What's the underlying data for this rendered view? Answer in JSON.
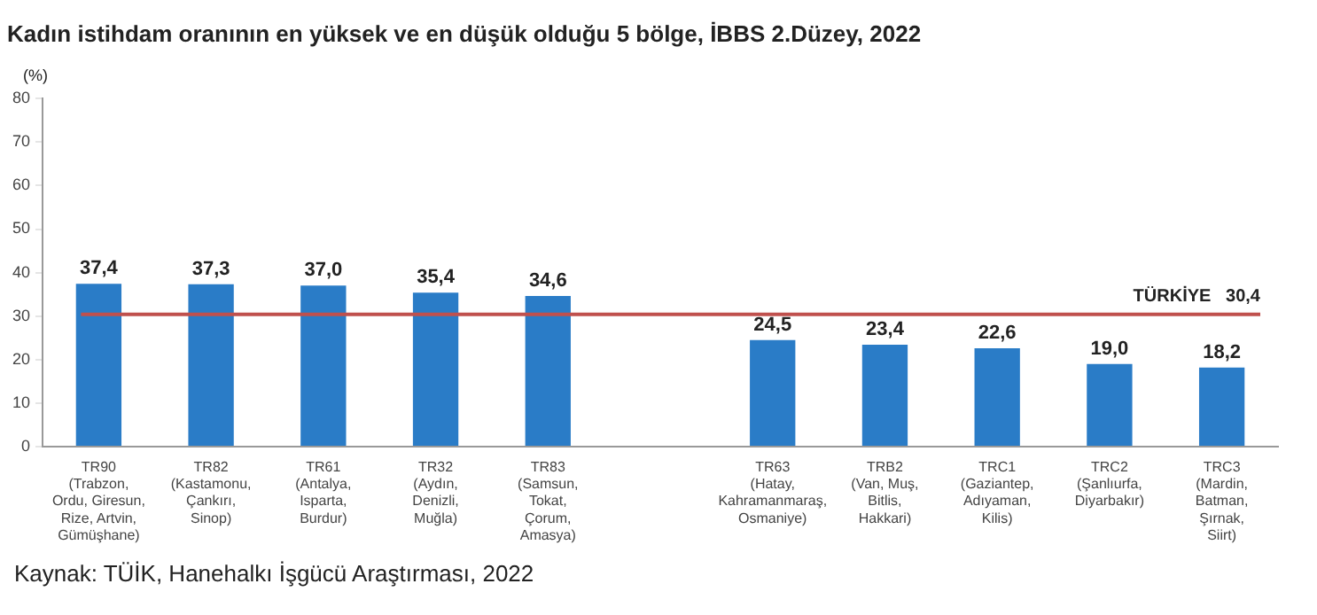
{
  "chart_data": {
    "type": "bar",
    "title": "Kadın istihdam oranının en yüksek ve en düşük olduğu 5 bölge, İBBS 2.Düzey, 2022",
    "ylabel": "(%)",
    "categories": [
      "TR90\n(Trabzon,\nOrdu, Giresun,\nRize, Artvin,\nGümüşhane)",
      "TR82\n(Kastamonu,\nÇankırı,\nSinop)",
      "TR61\n(Antalya,\nIsparta,\nBurdur)",
      "TR32\n(Aydın,\nDenizli,\nMuğla)",
      "TR83\n(Samsun,\nTokat,\nÇorum,\nAmasya)",
      null,
      "TR63\n(Hatay,\nKahramanmaraş,\nOsmaniye)",
      "TRB2\n(Van, Muş,\nBitlis,\nHakkari)",
      "TRC1\n(Gaziantep,\nAdıyaman,\nKilis)",
      "TRC2\n(Şanlıurfa,\nDiyarbakır)",
      "TRC3\n(Mardin,\nBatman,\nŞırnak,\nSiirt)"
    ],
    "values": [
      37.4,
      37.3,
      37.0,
      35.4,
      34.6,
      null,
      24.5,
      23.4,
      22.6,
      19.0,
      18.2
    ],
    "value_labels": [
      "37,4",
      "37,3",
      "37,0",
      "35,4",
      "34,6",
      null,
      "24,5",
      "23,4",
      "22,6",
      "19,0",
      "18,2"
    ],
    "color": "#2a7cc7",
    "ylim": [
      0,
      80
    ],
    "yticks": [
      0,
      10,
      20,
      30,
      40,
      50,
      60,
      70,
      80
    ],
    "grid": false,
    "legend": false,
    "ref_lines": [
      {
        "axis": "y",
        "value": 30.4,
        "label": "TÜRKİYE   30,4",
        "color": "#c0504d"
      }
    ],
    "annotations": [
      "Kaynak: TÜİK, Hanehalkı İşgücü Araştırması, 2022"
    ]
  }
}
